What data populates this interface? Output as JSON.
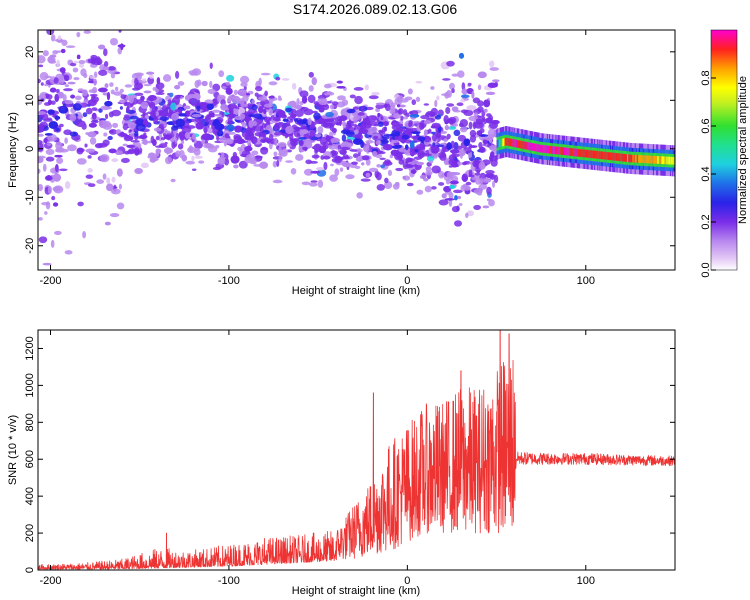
{
  "title": "S174.2026.089.02.13.G06",
  "spectrogram": {
    "xlabel": "Height of straight line (km)",
    "ylabel": "Frequency (Hz)",
    "xlim": [
      -207,
      150
    ],
    "ylim": [
      -25,
      24.5
    ],
    "xticks": [
      -200,
      -100,
      0,
      100
    ],
    "yticks": [
      -20,
      -10,
      0,
      10,
      20
    ],
    "colorbar": {
      "label": "Normalized spectral amplitude",
      "range": [
        0,
        1
      ],
      "ticks": [
        0.0,
        0.2,
        0.4,
        0.6,
        0.8
      ],
      "tick_labels": [
        "0.0",
        "0.2",
        "0.4",
        "0.6",
        "0.8"
      ]
    }
  },
  "chart_data": [
    {
      "type": "heatmap",
      "title": "S174.2026.089.02.13.G06",
      "xlabel": "Height of straight line (km)",
      "ylabel": "Frequency (Hz)",
      "xlim": [
        -207,
        150
      ],
      "ylim": [
        -25,
        24.5
      ],
      "x_ticks": [
        -200,
        -100,
        0,
        100
      ],
      "y_ticks": [
        -20,
        -10,
        0,
        10,
        20
      ],
      "colorbar": "Normalized spectral amplitude (0.0 - 1.0)",
      "signal_track": {
        "note": "weak purple speckle for x < 50 km, coherent narrow ridge for x > 50 km",
        "x": [
          -200,
          -150,
          -100,
          -50,
          0,
          50,
          55,
          75,
          100,
          125,
          150
        ],
        "frequency_hz": [
          6,
          6,
          6,
          4,
          2,
          1,
          1.5,
          0,
          -1,
          -2,
          -2.5
        ],
        "amplitude": [
          0.08,
          0.12,
          0.15,
          0.12,
          0.12,
          0.2,
          0.9,
          0.95,
          0.9,
          0.85,
          0.7
        ]
      }
    },
    {
      "type": "line",
      "xlabel": "Height of straight line (km)",
      "ylabel": "SNR (10 * v/v)",
      "xlim": [
        -207,
        150
      ],
      "ylim": [
        0,
        1300
      ],
      "x_ticks": [
        -200,
        -100,
        0,
        100
      ],
      "y_ticks": [
        0,
        200,
        400,
        600,
        800,
        1000,
        1200
      ],
      "color": "#ee3333",
      "series": [
        {
          "name": "SNR",
          "envelope_x": [
            -207,
            -180,
            -160,
            -140,
            -120,
            -100,
            -80,
            -60,
            -40,
            -30,
            -20,
            -10,
            0,
            10,
            20,
            30,
            40,
            50,
            60,
            61,
            80,
            100,
            120,
            150
          ],
          "envelope_low": [
            5,
            5,
            5,
            10,
            15,
            20,
            30,
            40,
            50,
            60,
            80,
            100,
            150,
            200,
            200,
            200,
            200,
            200,
            200,
            590,
            590,
            590,
            585,
            580
          ],
          "envelope_high": [
            30,
            40,
            60,
            120,
            110,
            140,
            180,
            190,
            220,
            360,
            500,
            700,
            800,
            900,
            920,
            1000,
            1000,
            1100,
            1250,
            670,
            660,
            660,
            650,
            640
          ],
          "peaks": [
            {
              "x": -135,
              "y": 200
            },
            {
              "x": -19,
              "y": 960
            },
            {
              "x": 30,
              "y": 1080
            },
            {
              "x": 52,
              "y": 1300
            },
            {
              "x": 57,
              "y": 1280
            }
          ]
        }
      ]
    }
  ],
  "snr": {
    "xlabel": "Height of straight line (km)",
    "ylabel": "SNR (10 * v/v)",
    "xlim": [
      -207,
      150
    ],
    "ylim": [
      0,
      1300
    ],
    "xticks": [
      -200,
      -100,
      0,
      100
    ],
    "yticks": [
      0,
      200,
      400,
      600,
      800,
      1000,
      1200
    ]
  }
}
